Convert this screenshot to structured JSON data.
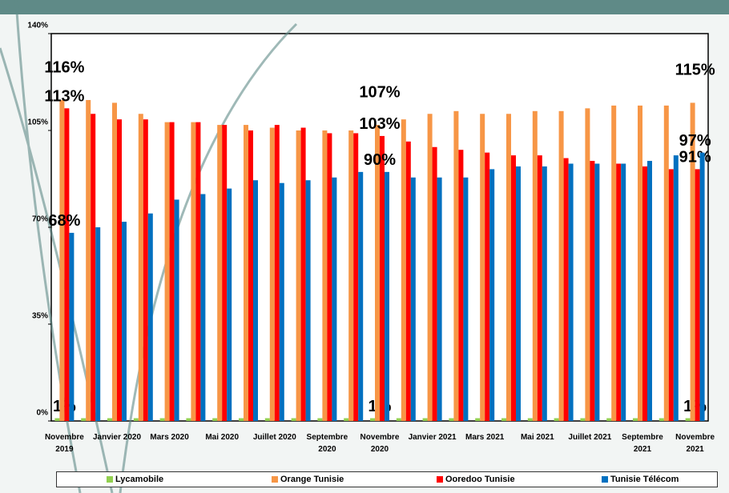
{
  "chart_data": {
    "type": "bar",
    "categories": [
      "Novembre 2019",
      null,
      "Janvier 2020",
      null,
      "Mars 2020",
      null,
      "Mai 2020",
      null,
      "Juillet 2020",
      null,
      "Septembre 2020",
      null,
      "Novembre 2020",
      null,
      "Janvier 2021",
      null,
      "Mars 2021",
      null,
      "Mai 2021",
      null,
      "Juillet 2021",
      null,
      "Septembre 2021",
      null,
      "Novembre 2021"
    ],
    "series": [
      {
        "name": "Lycamobile",
        "color": "#92d050",
        "values": [
          1,
          1,
          1,
          1,
          1,
          1,
          1,
          1,
          1,
          1,
          1,
          1,
          1,
          1,
          1,
          1,
          1,
          1,
          1,
          1,
          1,
          1,
          1,
          1,
          1
        ],
        "value_labels": [
          "1%",
          null,
          null,
          null,
          null,
          null,
          null,
          null,
          null,
          null,
          null,
          null,
          "1%",
          null,
          null,
          null,
          null,
          null,
          null,
          null,
          null,
          null,
          null,
          null,
          "1%"
        ]
      },
      {
        "name": "Orange Tunisie",
        "color": "#f79646",
        "values": [
          116,
          116,
          115,
          111,
          108,
          108,
          107,
          107,
          106,
          105,
          105,
          105,
          107,
          109,
          111,
          112,
          111,
          111,
          112,
          112,
          113,
          114,
          114,
          114,
          115
        ],
        "value_labels": [
          "116%",
          null,
          null,
          null,
          null,
          null,
          null,
          null,
          null,
          null,
          null,
          null,
          "107%",
          null,
          null,
          null,
          null,
          null,
          null,
          null,
          null,
          null,
          null,
          null,
          "115%"
        ]
      },
      {
        "name": "Ooredoo Tunisie",
        "color": "#ff0000",
        "values": [
          113,
          111,
          109,
          109,
          108,
          108,
          107,
          105,
          107,
          106,
          104,
          104,
          103,
          101,
          99,
          98,
          97,
          96,
          96,
          95,
          94,
          93,
          92,
          91,
          91
        ],
        "value_labels": [
          "113%",
          null,
          null,
          null,
          null,
          null,
          null,
          null,
          null,
          null,
          null,
          null,
          "103%",
          null,
          null,
          null,
          null,
          null,
          null,
          null,
          null,
          null,
          null,
          null,
          "91%"
        ]
      },
      {
        "name": "Tunisie Télécom",
        "color": "#0070c0",
        "values": [
          68,
          70,
          72,
          75,
          80,
          82,
          84,
          87,
          86,
          87,
          88,
          90,
          90,
          88,
          88,
          88,
          91,
          92,
          92,
          93,
          93,
          93,
          94,
          96,
          97
        ],
        "value_labels": [
          "68%",
          null,
          null,
          null,
          null,
          null,
          null,
          null,
          null,
          null,
          null,
          null,
          "90%",
          null,
          null,
          null,
          null,
          null,
          null,
          null,
          null,
          null,
          null,
          null,
          "97%"
        ]
      }
    ],
    "ylim": [
      0,
      140
    ],
    "yticks": [
      {
        "value": 0,
        "label": "0%"
      },
      {
        "value": 35,
        "label": "35%"
      },
      {
        "value": 70,
        "label": "70%"
      },
      {
        "value": 105,
        "label": "105%"
      },
      {
        "value": 140,
        "label": "140%"
      }
    ],
    "grid": false,
    "legend": "bottom"
  }
}
